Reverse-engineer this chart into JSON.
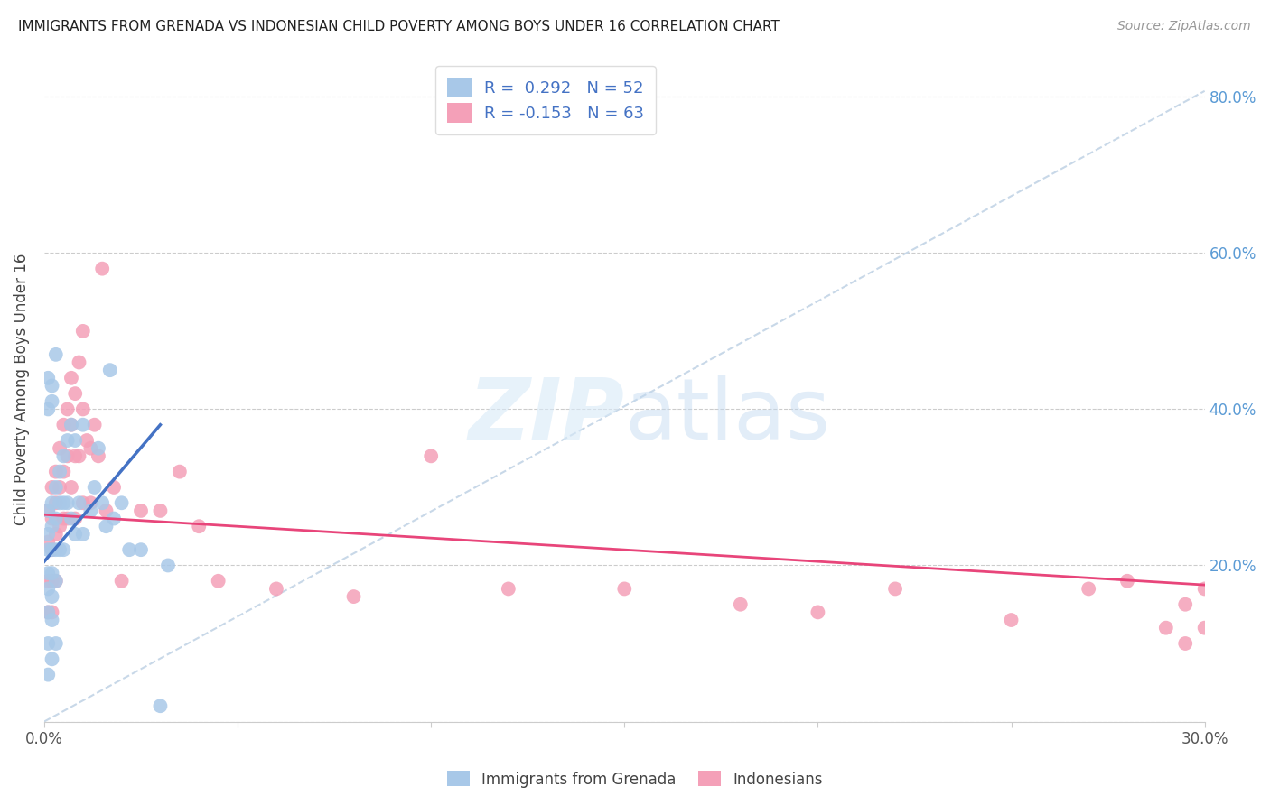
{
  "title": "IMMIGRANTS FROM GRENADA VS INDONESIAN CHILD POVERTY AMONG BOYS UNDER 16 CORRELATION CHART",
  "source": "Source: ZipAtlas.com",
  "ylabel": "Child Poverty Among Boys Under 16",
  "xlabel_legend1": "Immigrants from Grenada",
  "xlabel_legend2": "Indonesians",
  "legend1_R": "0.292",
  "legend1_N": "52",
  "legend2_R": "-0.153",
  "legend2_N": "63",
  "xlim": [
    0.0,
    0.3
  ],
  "ylim": [
    0.0,
    0.85
  ],
  "color_blue": "#a8c8e8",
  "color_pink": "#f4a0b8",
  "color_blue_line": "#4472c4",
  "color_pink_line": "#e8457a",
  "color_diag_line": "#c8d8e8",
  "watermark_zip": "ZIP",
  "watermark_atlas": "atlas",
  "blue_x": [
    0.001,
    0.001,
    0.001,
    0.001,
    0.001,
    0.001,
    0.001,
    0.001,
    0.002,
    0.002,
    0.002,
    0.002,
    0.002,
    0.002,
    0.002,
    0.003,
    0.003,
    0.003,
    0.003,
    0.003,
    0.004,
    0.004,
    0.004,
    0.005,
    0.005,
    0.005,
    0.006,
    0.006,
    0.007,
    0.007,
    0.008,
    0.008,
    0.009,
    0.01,
    0.01,
    0.012,
    0.013,
    0.014,
    0.015,
    0.016,
    0.017,
    0.018,
    0.02,
    0.022,
    0.025,
    0.03,
    0.032,
    0.001,
    0.001,
    0.002,
    0.002,
    0.003
  ],
  "blue_y": [
    0.27,
    0.24,
    0.22,
    0.19,
    0.17,
    0.14,
    0.1,
    0.06,
    0.28,
    0.25,
    0.22,
    0.19,
    0.16,
    0.13,
    0.08,
    0.3,
    0.26,
    0.22,
    0.18,
    0.1,
    0.32,
    0.28,
    0.22,
    0.34,
    0.28,
    0.22,
    0.36,
    0.28,
    0.38,
    0.26,
    0.36,
    0.24,
    0.28,
    0.38,
    0.24,
    0.27,
    0.3,
    0.35,
    0.28,
    0.25,
    0.45,
    0.26,
    0.28,
    0.22,
    0.22,
    0.02,
    0.2,
    0.44,
    0.4,
    0.43,
    0.41,
    0.47
  ],
  "pink_x": [
    0.001,
    0.001,
    0.001,
    0.001,
    0.002,
    0.002,
    0.002,
    0.002,
    0.002,
    0.003,
    0.003,
    0.003,
    0.003,
    0.004,
    0.004,
    0.004,
    0.005,
    0.005,
    0.005,
    0.006,
    0.006,
    0.006,
    0.007,
    0.007,
    0.007,
    0.008,
    0.008,
    0.008,
    0.009,
    0.009,
    0.01,
    0.01,
    0.01,
    0.011,
    0.012,
    0.012,
    0.013,
    0.014,
    0.015,
    0.016,
    0.018,
    0.02,
    0.025,
    0.03,
    0.035,
    0.04,
    0.045,
    0.06,
    0.08,
    0.1,
    0.12,
    0.15,
    0.18,
    0.2,
    0.22,
    0.25,
    0.27,
    0.28,
    0.29,
    0.295,
    0.3,
    0.3,
    0.295
  ],
  "pink_y": [
    0.27,
    0.23,
    0.18,
    0.14,
    0.3,
    0.26,
    0.22,
    0.18,
    0.14,
    0.32,
    0.28,
    0.24,
    0.18,
    0.35,
    0.3,
    0.25,
    0.38,
    0.32,
    0.26,
    0.4,
    0.34,
    0.26,
    0.44,
    0.38,
    0.3,
    0.42,
    0.34,
    0.26,
    0.46,
    0.34,
    0.5,
    0.4,
    0.28,
    0.36,
    0.35,
    0.28,
    0.38,
    0.34,
    0.58,
    0.27,
    0.3,
    0.18,
    0.27,
    0.27,
    0.32,
    0.25,
    0.18,
    0.17,
    0.16,
    0.34,
    0.17,
    0.17,
    0.15,
    0.14,
    0.17,
    0.13,
    0.17,
    0.18,
    0.12,
    0.15,
    0.17,
    0.12,
    0.1
  ],
  "blue_line_x0": 0.0,
  "blue_line_y0": 0.205,
  "blue_line_x1": 0.03,
  "blue_line_y1": 0.38,
  "pink_line_x0": 0.0,
  "pink_line_y0": 0.265,
  "pink_line_x1": 0.3,
  "pink_line_y1": 0.175
}
